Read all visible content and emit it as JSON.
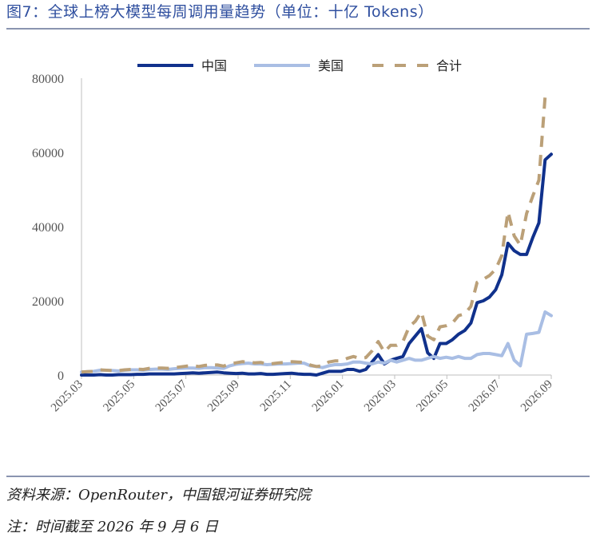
{
  "figure": {
    "title": "图7：全球上榜大模型每周调用量趋势（单位：十亿 Tokens）",
    "source": "资料来源：OpenRouter，中国银河证券研究院",
    "note": "注：时间截至 2026 年 9 月 6 日"
  },
  "chart_data": {
    "type": "line",
    "title": "",
    "xlabel": "",
    "ylabel": "",
    "ylim": [
      0,
      80000
    ],
    "yticks": [
      "0",
      "20000",
      "40000",
      "60000",
      "80000"
    ],
    "xticks": [
      "2025.03",
      "2025.05",
      "2025.07",
      "2025.09",
      "2025.11",
      "2026.01",
      "2026.03",
      "2026.05",
      "2026.07",
      "2026.09"
    ],
    "x_start": "2025.03",
    "x_end": "2026.09",
    "grid": false,
    "legend_position": "top",
    "series": [
      {
        "name": "中国",
        "color": "#10318c",
        "style": "solid",
        "values": [
          0,
          0,
          0,
          100,
          0,
          0,
          100,
          100,
          100,
          200,
          200,
          300,
          300,
          300,
          300,
          300,
          400,
          500,
          600,
          500,
          600,
          700,
          800,
          600,
          500,
          400,
          500,
          300,
          300,
          400,
          200,
          200,
          300,
          400,
          500,
          300,
          200,
          200,
          0,
          500,
          1000,
          1000,
          1000,
          1500,
          1500,
          1000,
          1500,
          3500,
          5500,
          3000,
          4000,
          4500,
          5000,
          8500,
          10500,
          12500,
          6000,
          4500,
          8500,
          8500,
          9500,
          11000,
          12000,
          14000,
          19500,
          20000,
          21000,
          23000,
          27000,
          35500,
          33500,
          32500,
          32500,
          37000,
          41000,
          58000,
          59500
        ]
      },
      {
        "name": "美国",
        "color": "#a9bee4",
        "style": "solid",
        "values": [
          800,
          900,
          1000,
          1300,
          1300,
          1200,
          1100,
          1300,
          1400,
          1400,
          1300,
          1500,
          1600,
          1600,
          1500,
          1700,
          1800,
          1900,
          1900,
          1800,
          2000,
          2000,
          1900,
          1800,
          2500,
          2900,
          3100,
          3200,
          3000,
          3000,
          2800,
          2900,
          3000,
          3000,
          3100,
          3200,
          3200,
          2500,
          2300,
          2000,
          2500,
          2800,
          2800,
          3000,
          3500,
          3500,
          3200,
          3000,
          3500,
          3200,
          4000,
          3500,
          4000,
          4500,
          4000,
          4000,
          4500,
          5000,
          4500,
          4800,
          4500,
          5000,
          4500,
          4500,
          5500,
          5800,
          5800,
          5500,
          5200,
          8500,
          4000,
          2500,
          11000,
          11200,
          11500,
          17000,
          16000
        ]
      },
      {
        "name": "合计",
        "color": "#bba078",
        "style": "dashed",
        "values": [
          800,
          900,
          1000,
          1400,
          1300,
          1200,
          1200,
          1400,
          1500,
          1600,
          1500,
          1800,
          1900,
          1900,
          1800,
          2000,
          2200,
          2400,
          2500,
          2300,
          2600,
          2700,
          2700,
          2400,
          3000,
          3300,
          3600,
          3500,
          3300,
          3400,
          3000,
          3100,
          3300,
          3400,
          3600,
          3500,
          3400,
          2700,
          2300,
          2500,
          3500,
          3800,
          3800,
          4500,
          5000,
          4500,
          4700,
          6500,
          9000,
          6200,
          8000,
          8000,
          9000,
          13000,
          14500,
          17000,
          10500,
          9500,
          13000,
          13300,
          14000,
          16000,
          16500,
          18500,
          25000,
          25800,
          26800,
          28500,
          32200,
          44000,
          37500,
          35000,
          43500,
          48200,
          52500,
          75000,
          75500
        ]
      }
    ]
  }
}
